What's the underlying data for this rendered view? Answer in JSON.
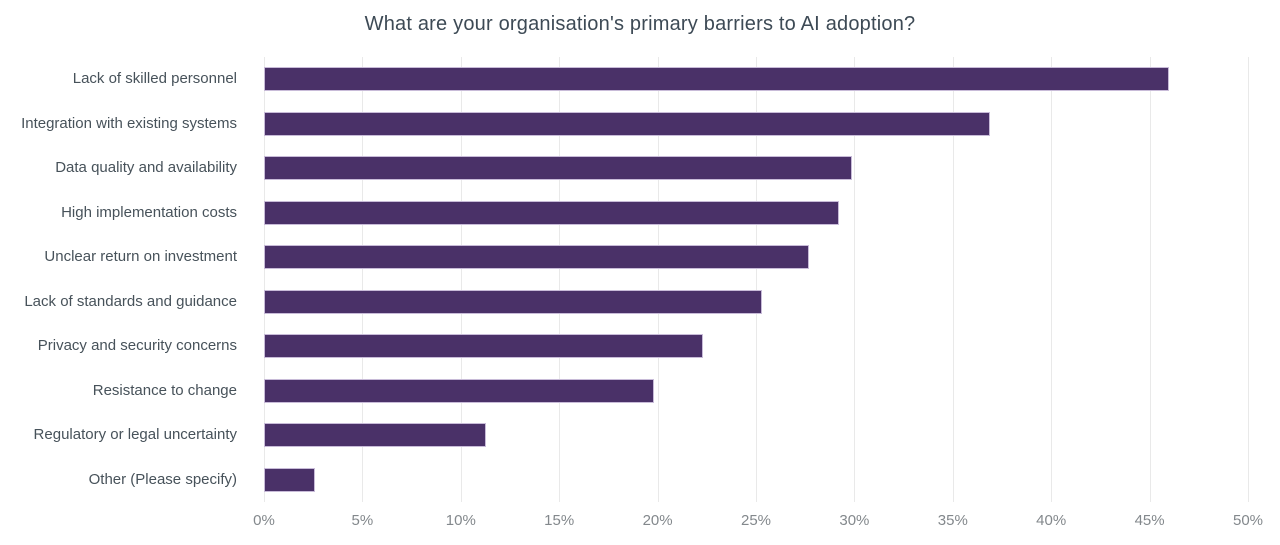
{
  "chart_data": {
    "type": "bar",
    "orientation": "horizontal",
    "title": "What are your organisation's primary barriers to AI adoption?",
    "categories": [
      "Lack of skilled personnel",
      "Integration with existing systems",
      "Data quality and availability",
      "High implementation costs",
      "Unclear return on investment",
      "Lack of standards and guidance",
      "Privacy and security concerns",
      "Resistance to change",
      "Regulatory or legal uncertainty",
      "Other (Please specify)"
    ],
    "values": [
      46.0,
      36.9,
      29.9,
      29.2,
      27.7,
      25.3,
      22.3,
      19.8,
      11.3,
      2.6
    ],
    "xlabel": "",
    "ylabel": "",
    "xlim": [
      0,
      50
    ],
    "xtick_step": 5,
    "xtick_labels": [
      "0%",
      "5%",
      "10%",
      "15%",
      "20%",
      "25%",
      "30%",
      "35%",
      "40%",
      "45%",
      "50%"
    ],
    "grid": true,
    "legend": false
  },
  "colors": {
    "bar_fill": "#4a3168",
    "bar_border": "#c8bbd8",
    "gridline": "#e9e9e9",
    "title_text": "#3d4a55",
    "category_text": "#47525a",
    "tick_text": "#83888c",
    "background": "#ffffff"
  }
}
